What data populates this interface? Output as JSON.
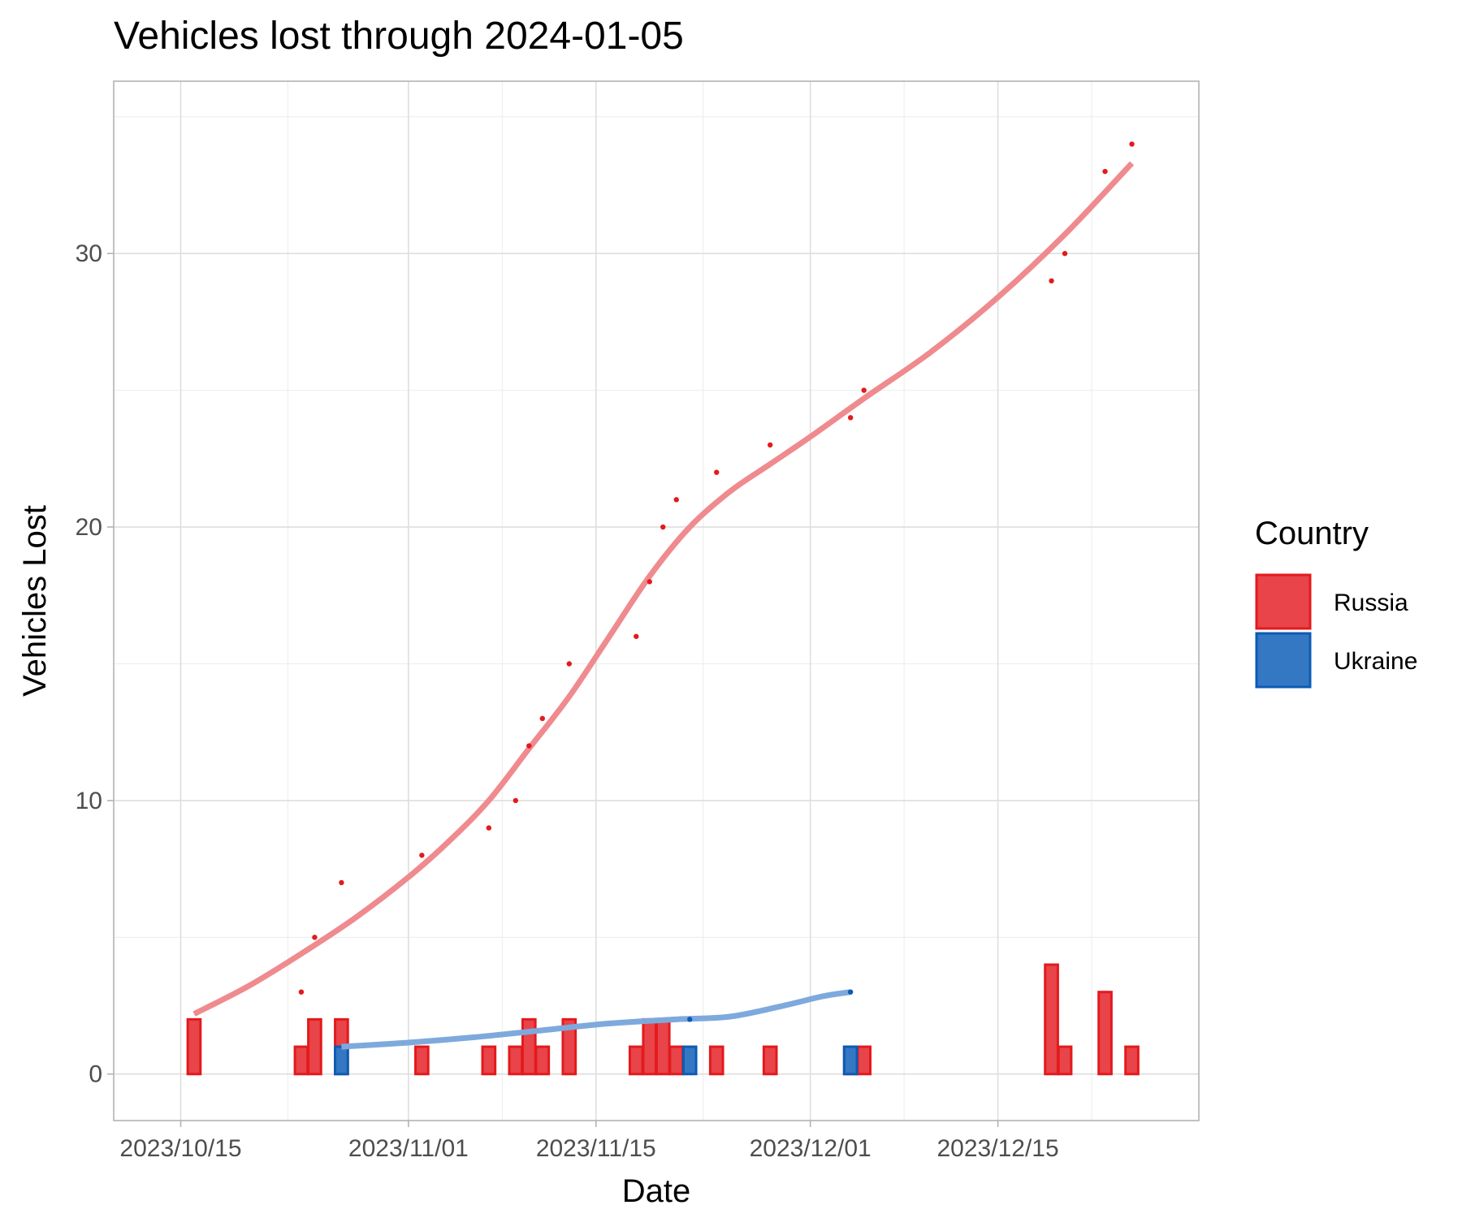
{
  "chart_data": {
    "type": "bar+line",
    "title": "Vehicles lost through 2024-01-05",
    "xlabel": "Date",
    "ylabel": "Vehicles Lost",
    "x_domain": [
      "2023-10-10",
      "2023-12-30"
    ],
    "ylim": [
      -1.7,
      36.3
    ],
    "x_ticks": [
      {
        "date": "2023-10-15",
        "label": "2023/10/15"
      },
      {
        "date": "2023-11-01",
        "label": "2023/11/01"
      },
      {
        "date": "2023-11-15",
        "label": "2023/11/15"
      },
      {
        "date": "2023-12-01",
        "label": "2023/12/01"
      },
      {
        "date": "2023-12-15",
        "label": "2023/12/15"
      }
    ],
    "y_ticks": [
      0,
      10,
      20,
      30
    ],
    "grid": true,
    "legend": {
      "title": "Country",
      "position": "right",
      "entries": [
        {
          "label": "Russia",
          "fill": "#e8444a",
          "stroke": "#e31a1c"
        },
        {
          "label": "Ukraine",
          "fill": "#3478c4",
          "stroke": "#0c5bb5"
        }
      ]
    },
    "series": [
      {
        "name": "Russia",
        "color": "#e31a1c",
        "fill": "#e8444a",
        "smooth_color": "#ef8a8e",
        "daily": [
          {
            "date": "2023-10-16",
            "value": 2
          },
          {
            "date": "2023-10-24",
            "value": 1
          },
          {
            "date": "2023-10-25",
            "value": 2
          },
          {
            "date": "2023-10-27",
            "value": 2
          },
          {
            "date": "2023-11-02",
            "value": 1
          },
          {
            "date": "2023-11-07",
            "value": 1
          },
          {
            "date": "2023-11-09",
            "value": 1
          },
          {
            "date": "2023-11-10",
            "value": 2
          },
          {
            "date": "2023-11-11",
            "value": 1
          },
          {
            "date": "2023-11-13",
            "value": 2
          },
          {
            "date": "2023-11-18",
            "value": 1
          },
          {
            "date": "2023-11-19",
            "value": 2
          },
          {
            "date": "2023-11-20",
            "value": 2
          },
          {
            "date": "2023-11-21",
            "value": 1
          },
          {
            "date": "2023-11-24",
            "value": 1
          },
          {
            "date": "2023-11-28",
            "value": 1
          },
          {
            "date": "2023-12-04",
            "value": 1
          },
          {
            "date": "2023-12-05",
            "value": 1
          },
          {
            "date": "2023-12-19",
            "value": 4
          },
          {
            "date": "2023-12-20",
            "value": 1
          },
          {
            "date": "2023-12-23",
            "value": 3
          },
          {
            "date": "2023-12-25",
            "value": 1
          }
        ],
        "cumulative": [
          {
            "date": "2023-10-24",
            "value": 3
          },
          {
            "date": "2023-10-25",
            "value": 5
          },
          {
            "date": "2023-10-27",
            "value": 7
          },
          {
            "date": "2023-11-02",
            "value": 8
          },
          {
            "date": "2023-11-07",
            "value": 9
          },
          {
            "date": "2023-11-09",
            "value": 10
          },
          {
            "date": "2023-11-10",
            "value": 12
          },
          {
            "date": "2023-11-11",
            "value": 13
          },
          {
            "date": "2023-11-13",
            "value": 15
          },
          {
            "date": "2023-11-18",
            "value": 16
          },
          {
            "date": "2023-11-19",
            "value": 18
          },
          {
            "date": "2023-11-20",
            "value": 20
          },
          {
            "date": "2023-11-21",
            "value": 21
          },
          {
            "date": "2023-11-24",
            "value": 22
          },
          {
            "date": "2023-11-28",
            "value": 23
          },
          {
            "date": "2023-12-04",
            "value": 24
          },
          {
            "date": "2023-12-05",
            "value": 25
          },
          {
            "date": "2023-12-19",
            "value": 29
          },
          {
            "date": "2023-12-20",
            "value": 30
          },
          {
            "date": "2023-12-23",
            "value": 33
          },
          {
            "date": "2023-12-25",
            "value": 34
          }
        ],
        "smooth": [
          {
            "date": "2023-10-16",
            "value": 2.2
          },
          {
            "date": "2023-10-20",
            "value": 3.2
          },
          {
            "date": "2023-10-24",
            "value": 4.4
          },
          {
            "date": "2023-10-28",
            "value": 5.7
          },
          {
            "date": "2023-11-01",
            "value": 7.2
          },
          {
            "date": "2023-11-04",
            "value": 8.5
          },
          {
            "date": "2023-11-07",
            "value": 10.0
          },
          {
            "date": "2023-11-10",
            "value": 11.9
          },
          {
            "date": "2023-11-13",
            "value": 13.8
          },
          {
            "date": "2023-11-16",
            "value": 16.0
          },
          {
            "date": "2023-11-19",
            "value": 18.2
          },
          {
            "date": "2023-11-22",
            "value": 20.0
          },
          {
            "date": "2023-11-25",
            "value": 21.3
          },
          {
            "date": "2023-11-28",
            "value": 22.3
          },
          {
            "date": "2023-12-01",
            "value": 23.3
          },
          {
            "date": "2023-12-05",
            "value": 24.7
          },
          {
            "date": "2023-12-10",
            "value": 26.4
          },
          {
            "date": "2023-12-15",
            "value": 28.4
          },
          {
            "date": "2023-12-20",
            "value": 30.7
          },
          {
            "date": "2023-12-25",
            "value": 33.3
          }
        ]
      },
      {
        "name": "Ukraine",
        "color": "#0c5bb5",
        "fill": "#3478c4",
        "smooth_color": "#7ea9dc",
        "daily": [
          {
            "date": "2023-10-27",
            "value": 1
          },
          {
            "date": "2023-11-22",
            "value": 1
          },
          {
            "date": "2023-12-04",
            "value": 1
          }
        ],
        "cumulative": [
          {
            "date": "2023-11-22",
            "value": 2
          },
          {
            "date": "2023-12-04",
            "value": 3
          }
        ],
        "smooth": [
          {
            "date": "2023-10-27",
            "value": 1.0
          },
          {
            "date": "2023-11-01",
            "value": 1.15
          },
          {
            "date": "2023-11-06",
            "value": 1.35
          },
          {
            "date": "2023-11-11",
            "value": 1.6
          },
          {
            "date": "2023-11-16",
            "value": 1.85
          },
          {
            "date": "2023-11-21",
            "value": 2.0
          },
          {
            "date": "2023-11-25",
            "value": 2.1
          },
          {
            "date": "2023-11-29",
            "value": 2.5
          },
          {
            "date": "2023-12-02",
            "value": 2.85
          },
          {
            "date": "2023-12-04",
            "value": 3.0
          }
        ]
      }
    ]
  }
}
